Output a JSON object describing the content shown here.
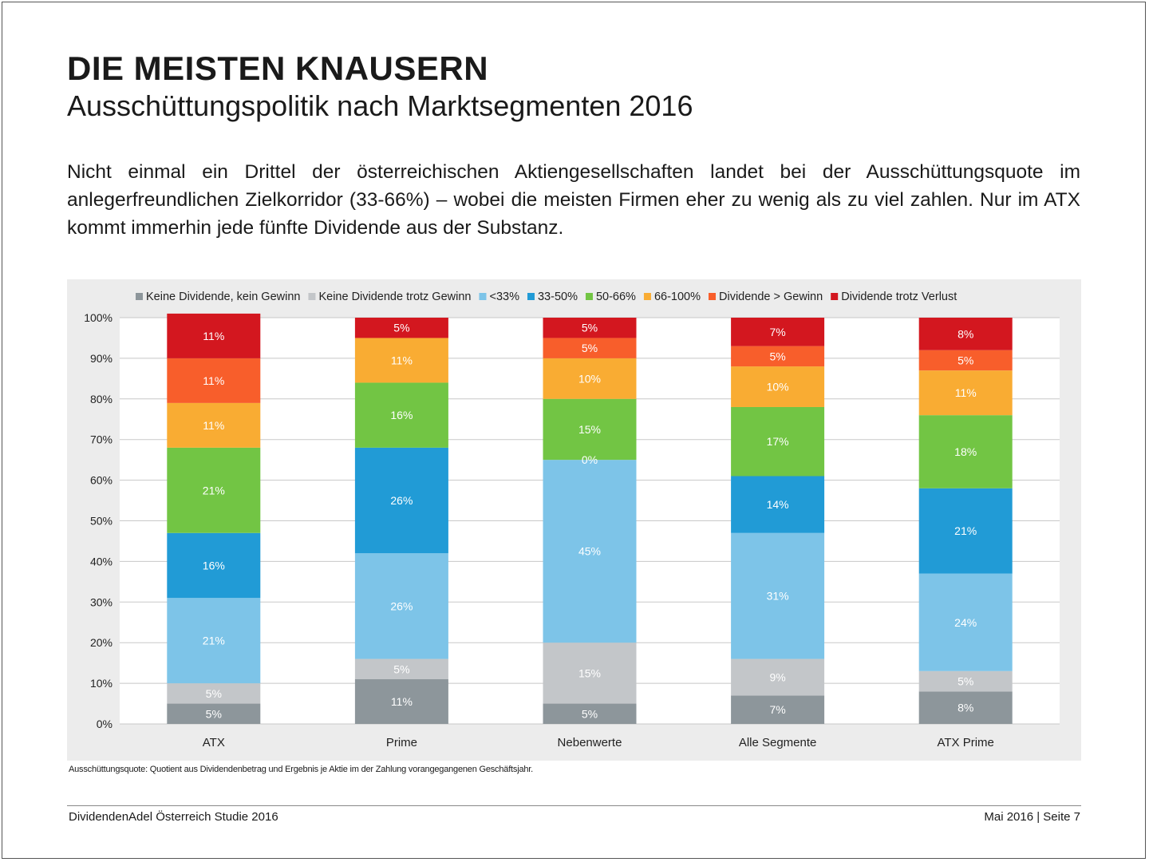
{
  "header": {
    "title": "DIE MEISTEN KNAUSERN",
    "subtitle": "Ausschüttungspolitik nach Marktsegmenten 2016"
  },
  "intro": "Nicht einmal ein Drittel der österreichischen Aktiengesellschaften landet bei der Ausschüttungsquote im anlegerfreundlichen Zielkorridor (33-66%) – wobei die meisten Firmen eher zu wenig als zu viel zahlen. Nur im ATX kommt immerhin jede fünfte Dividende aus der Substanz.",
  "footnote": "Ausschüttungsquote: Quotient aus Dividendenbetrag und Ergebnis je Aktie im der Zahlung vorangegangenen Geschäftsjahr.",
  "footer": {
    "left": "DividendenAdel Österreich Studie 2016",
    "right": "Mai 2016 | Seite 7"
  },
  "chart_data": {
    "type": "bar",
    "stacked": true,
    "categories": [
      "ATX",
      "Prime",
      "Nebenwerte",
      "Alle Segmente",
      "ATX Prime"
    ],
    "ylim": [
      0,
      100
    ],
    "yticks": [
      "0%",
      "10%",
      "20%",
      "30%",
      "40%",
      "50%",
      "60%",
      "70%",
      "80%",
      "90%",
      "100%"
    ],
    "grid": true,
    "legend_position": "top",
    "series": [
      {
        "name": "Keine Dividende, kein Gewinn",
        "color": "#8d969b",
        "values": [
          5,
          11,
          5,
          7,
          8
        ]
      },
      {
        "name": "Keine Dividende trotz Gewinn",
        "color": "#c3c6c9",
        "values": [
          5,
          5,
          15,
          9,
          5
        ]
      },
      {
        "name": "<33%",
        "color": "#7dc4e8",
        "values": [
          21,
          26,
          45,
          31,
          24
        ]
      },
      {
        "name": "33-50%",
        "color": "#219bd6",
        "values": [
          16,
          26,
          0,
          14,
          21
        ]
      },
      {
        "name": "50-66%",
        "color": "#72c544",
        "values": [
          21,
          16,
          15,
          17,
          18
        ]
      },
      {
        "name": "66-100%",
        "color": "#f9ac33",
        "values": [
          11,
          11,
          10,
          10,
          11
        ]
      },
      {
        "name": "Dividende > Gewinn",
        "color": "#f85e2b",
        "values": [
          11,
          null,
          5,
          5,
          5
        ]
      },
      {
        "name": "Dividende trotz Verlust",
        "color": "#d3171f",
        "values": [
          11,
          5,
          5,
          7,
          8
        ]
      }
    ]
  }
}
